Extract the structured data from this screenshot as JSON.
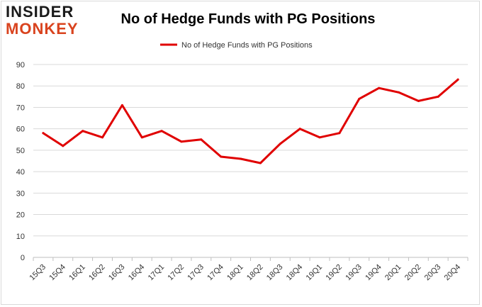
{
  "logo": {
    "line1": "INSIDER",
    "line2": "MONKEY",
    "colors": {
      "line1": "#1a1a1a",
      "line2": "#d9431e"
    }
  },
  "chart_data": {
    "type": "line",
    "title": "No of Hedge Funds with PG Positions",
    "xlabel": "",
    "ylabel": "",
    "categories": [
      "15Q3",
      "15Q4",
      "16Q1",
      "16Q2",
      "16Q3",
      "16Q4",
      "17Q1",
      "17Q2",
      "17Q3",
      "17Q4",
      "18Q1",
      "18Q2",
      "18Q3",
      "18Q4",
      "19Q1",
      "19Q2",
      "19Q3",
      "19Q4",
      "20Q1",
      "20Q2",
      "20Q3",
      "20Q4"
    ],
    "series": [
      {
        "name": "No of Hedge Funds with PG Positions",
        "color": "#e00000",
        "values": [
          58,
          52,
          59,
          56,
          71,
          56,
          59,
          54,
          55,
          47,
          46,
          44,
          53,
          60,
          56,
          58,
          74,
          79,
          77,
          73,
          75,
          83
        ]
      }
    ],
    "ylim": [
      0,
      90
    ],
    "yticks": [
      0,
      10,
      20,
      30,
      40,
      50,
      60,
      70,
      80,
      90
    ],
    "grid": true,
    "legend_position": "top-center"
  }
}
